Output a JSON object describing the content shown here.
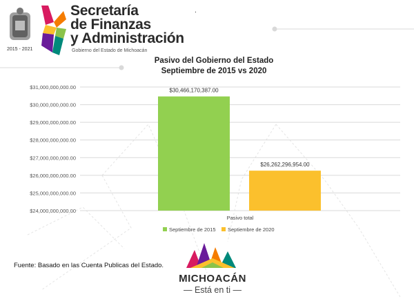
{
  "header": {
    "seal_years": "2015 - 2021",
    "brand_lines": [
      "Secretaría",
      "de Finanzas",
      "y Administración"
    ],
    "brand_subtitle": "Gobierno del Estado de Michoacán",
    "stray_mark": "."
  },
  "chart_data": {
    "type": "bar",
    "title": [
      "Pasivo del Gobierno del Estado",
      "Septiembre de 2015 vs 2020"
    ],
    "categories": [
      "Pasivo total"
    ],
    "series": [
      {
        "name": "Septiembre de 2015",
        "values": [
          30466170387.0
        ],
        "label": "$30,466,170,387.00",
        "color": "#92d050"
      },
      {
        "name": "Septiembre de 2020",
        "values": [
          26262296954.0
        ],
        "label": "$26,262,296,954.00",
        "color": "#fbc02d"
      }
    ],
    "ylim": [
      24000000000,
      31000000000
    ],
    "yticks": [
      {
        "value": 31000000000,
        "label": "$31,000,000,000.00"
      },
      {
        "value": 30000000000,
        "label": "$30,000,000,000.00"
      },
      {
        "value": 29000000000,
        "label": "$29,000,000,000.00"
      },
      {
        "value": 28000000000,
        "label": "$28,000,000,000.00"
      },
      {
        "value": 27000000000,
        "label": "$27,000,000,000.00"
      },
      {
        "value": 26000000000,
        "label": "$26,000,000,000.00"
      },
      {
        "value": 25000000000,
        "label": "$25,000,000,000.00"
      },
      {
        "value": 24000000000,
        "label": "$24,000,000,000.00"
      }
    ],
    "grid": true,
    "legend_position": "bottom"
  },
  "footer": {
    "source": "Fuente: Basado en las Cuenta Publicas del Estado.",
    "logo_word": "MICHOACÁN",
    "logo_slogan": "— Está en ti —"
  },
  "colors": {
    "magenta": "#d81b60",
    "purple": "#6a1b9a",
    "orange": "#f57c00",
    "yellow": "#fbc02d",
    "green": "#8bc34a",
    "teal": "#00897b"
  }
}
